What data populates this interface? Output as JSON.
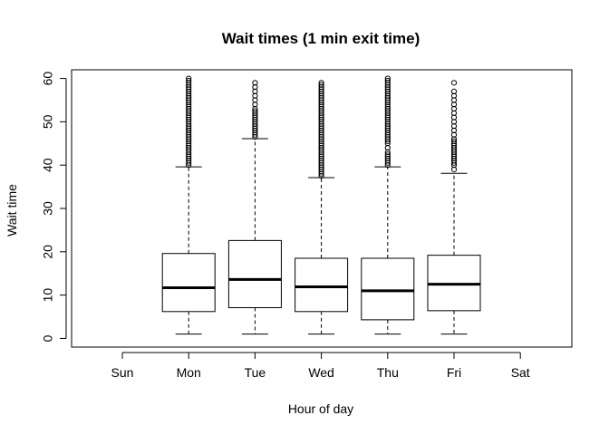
{
  "chart_data": {
    "type": "boxplot",
    "title": "Wait times (1 min exit time)",
    "xlabel": "Hour of day",
    "ylabel": "Wait time",
    "categories": [
      "Sun",
      "Mon",
      "Tue",
      "Wed",
      "Thu",
      "Fri",
      "Sat"
    ],
    "ylim": [
      -2,
      62
    ],
    "yticks": [
      0,
      10,
      20,
      30,
      40,
      50,
      60
    ],
    "grid": false,
    "boxes": [
      null,
      {
        "min": 1,
        "q1": 6.2,
        "median": 11.7,
        "q3": 19.6,
        "whisker_high": 39.6,
        "outliers": [
          40,
          40.5,
          41,
          41.5,
          42,
          42.5,
          43,
          43.5,
          44,
          44.5,
          45,
          45.5,
          46,
          46.5,
          47,
          47.5,
          48,
          48.5,
          49,
          49.5,
          50,
          50.5,
          51,
          51.5,
          52,
          52.5,
          53,
          53.5,
          54,
          54.5,
          55,
          55.5,
          56,
          56.5,
          57,
          57.5,
          58,
          58.5,
          59,
          59.5,
          60
        ]
      },
      {
        "min": 1,
        "q1": 7.1,
        "median": 13.6,
        "q3": 22.6,
        "whisker_high": 46.1,
        "outliers": [
          46.5,
          47,
          47.5,
          48,
          48.5,
          49,
          49.5,
          50,
          50.5,
          51,
          51.5,
          52,
          52.5,
          53,
          54,
          55,
          56,
          57,
          58,
          59
        ]
      },
      {
        "min": 1,
        "q1": 6.2,
        "median": 11.9,
        "q3": 18.5,
        "whisker_high": 37.1,
        "outliers": [
          37.5,
          38,
          38.5,
          39,
          39.5,
          40,
          40.5,
          41,
          41.5,
          42,
          42.5,
          43,
          43.5,
          44,
          44.5,
          45,
          45.5,
          46,
          46.5,
          47,
          47.5,
          48,
          48.5,
          49,
          49.5,
          50,
          50.5,
          51,
          51.5,
          52,
          52.5,
          53,
          53.5,
          54,
          54.5,
          55,
          55.5,
          56,
          56.5,
          57,
          57.5,
          58,
          58.5,
          59
        ]
      },
      {
        "min": 1,
        "q1": 4.3,
        "median": 11.0,
        "q3": 18.5,
        "whisker_high": 39.6,
        "outliers": [
          40,
          40.5,
          41,
          41.5,
          42,
          42.5,
          43,
          44,
          45,
          45.5,
          46,
          46.5,
          47,
          47.5,
          48,
          48.5,
          49,
          49.5,
          50,
          50.5,
          51,
          51.5,
          52,
          52.5,
          53,
          53.5,
          54,
          54.5,
          55,
          55.5,
          56,
          56.5,
          57,
          57.5,
          58,
          58.5,
          59,
          59.5,
          60
        ]
      },
      {
        "min": 1,
        "q1": 6.4,
        "median": 12.5,
        "q3": 19.2,
        "whisker_high": 38.1,
        "outliers": [
          39,
          40,
          40.5,
          41,
          41.5,
          42,
          42.5,
          43,
          43.5,
          44,
          44.5,
          45,
          45.5,
          46,
          47,
          48,
          49,
          50,
          51,
          52,
          53,
          54,
          55,
          56,
          57,
          59
        ]
      },
      null
    ]
  }
}
